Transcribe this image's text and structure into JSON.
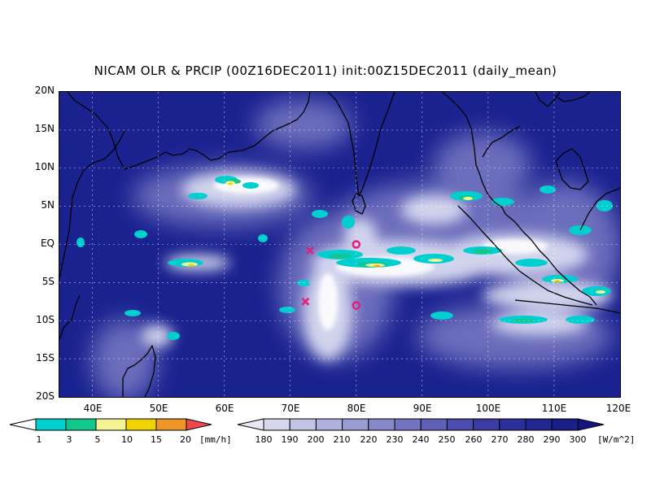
{
  "title": "NICAM OLR & PRCIP (00Z16DEC2011) init:00Z15DEC2011 (daily_mean)",
  "map": {
    "lon_range": [
      35,
      120
    ],
    "lat_range": [
      -20,
      20
    ],
    "lat_ticks": [
      "20N",
      "15N",
      "10N",
      "5N",
      "EQ",
      "5S",
      "10S",
      "15S",
      "20S"
    ],
    "lon_ticks": [
      "40E",
      "50E",
      "60E",
      "70E",
      "80E",
      "90E",
      "100E",
      "110E",
      "120E"
    ],
    "grid": true,
    "background_color": "#1a2290",
    "coastline_color": "#000000",
    "markers": [
      {
        "type": "cross",
        "lon": 73,
        "lat": -0.8,
        "color": "#e0207a"
      },
      {
        "type": "circle",
        "lon": 80,
        "lat": 0,
        "color": "#e0207a"
      },
      {
        "type": "cross",
        "lon": 72.3,
        "lat": -7.5,
        "color": "#e0207a"
      },
      {
        "type": "circle",
        "lon": 80,
        "lat": -8,
        "color": "#e0207a"
      }
    ]
  },
  "precip_colorbar": {
    "labels": [
      "1",
      "3",
      "5",
      "10",
      "15",
      "20"
    ],
    "unit": "[mm/h]",
    "colors": [
      "#00cfcf",
      "#10c88c",
      "#f4f494",
      "#f0d200",
      "#f09628",
      "#f04650"
    ]
  },
  "olr_colorbar": {
    "labels": [
      "180",
      "190",
      "200",
      "210",
      "220",
      "230",
      "240",
      "250",
      "260",
      "270",
      "280",
      "290",
      "300"
    ],
    "unit": "[W/m^2]",
    "colors": [
      "#e8e8f4",
      "#d6d8ee",
      "#c2c4e6",
      "#aeb0de",
      "#9a9cd4",
      "#8688cc",
      "#7274c2",
      "#5e60b8",
      "#4a4cae",
      "#3a3ca4",
      "#2c2e9a",
      "#222692",
      "#1a1e88",
      "#12167e"
    ]
  }
}
